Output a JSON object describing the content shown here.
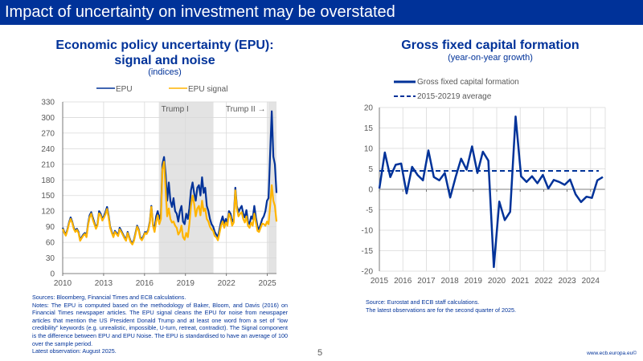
{
  "header": {
    "title": "Impact of uncertainty on investment may be overstated"
  },
  "colors": {
    "brand": "#003299",
    "epu": "#003299",
    "epu_signal": "#FFB400",
    "shade": "#E3E3E3",
    "grid": "#D9D9D9"
  },
  "left": {
    "title_line1": "Economic policy uncertainty (EPU):",
    "title_line2": "signal and noise",
    "subtitle": "(indices)",
    "notes": [
      "Sources: Bloomberg, Financial Times and ECB calculations.",
      "Notes: The EPU is computed based on the methodology of Baker, Bloom, and Davis (2016) on Financial Times newspaper articles. The EPU signal cleans the EPU for noise from newspaper articles that mention the US President Donald Trump and at least one word from a set of “low credibility” keywords (e.g. unrealistic, impossible, U-turn, retreat, contradict). The Signal component is the difference between EPU and EPU Noise. The EPU is standardised to have an average of 100 over the sample period.",
      "Latest observation: August 2025."
    ]
  },
  "right": {
    "title": "Gross fixed capital formation",
    "subtitle": "(year-on-year growth)",
    "notes": [
      "Source: Eurostat and ECB staff calculations.",
      "The latest observations are for the second quarter of 2025."
    ]
  },
  "footer": {
    "page": "5",
    "url": "www.ecb.europa.eu©"
  },
  "chart_data": [
    {
      "type": "line",
      "title": "Economic policy uncertainty (EPU): signal and noise",
      "subtitle": "(indices)",
      "xlabel": "",
      "ylabel": "",
      "xlim": [
        2010,
        2025.67
      ],
      "ylim": [
        0,
        330
      ],
      "yticks": [
        0,
        30,
        60,
        90,
        120,
        150,
        180,
        210,
        240,
        270,
        300,
        330
      ],
      "xticks": [
        2010,
        2013,
        2016,
        2019,
        2022,
        2025
      ],
      "grid": true,
      "legend": "top-center",
      "shaded_periods": [
        {
          "label": "Trump I",
          "start": 2017.05,
          "end": 2021.05
        },
        {
          "label": "Trump II →",
          "start": 2025.05,
          "end": 2025.67
        }
      ],
      "x_step_months": 2,
      "x_start": 2010.0,
      "series": [
        {
          "name": "EPU",
          "values": [
            88,
            80,
            75,
            85,
            98,
            108,
            100,
            88,
            82,
            86,
            80,
            65,
            70,
            75,
            78,
            72,
            95,
            112,
            118,
            108,
            98,
            88,
            95,
            120,
            115,
            105,
            110,
            118,
            128,
            112,
            90,
            80,
            72,
            82,
            78,
            74,
            88,
            82,
            76,
            70,
            65,
            80,
            70,
            62,
            58,
            65,
            78,
            92,
            85,
            70,
            66,
            72,
            80,
            78,
            84,
            100,
            130,
            95,
            85,
            110,
            120,
            105,
            115,
            210,
            224,
            190,
            140,
            175,
            140,
            128,
            145,
            120,
            115,
            100,
            120,
            130,
            100,
            95,
            115,
            105,
            125,
            160,
            175,
            155,
            140,
            165,
            170,
            150,
            185,
            155,
            165,
            130,
            120,
            105,
            95,
            90,
            80,
            75,
            70,
            85,
            100,
            110,
            95,
            105,
            98,
            120,
            115,
            100,
            105,
            165,
            130,
            118,
            125,
            130,
            115,
            108,
            122,
            100,
            95,
            110,
            105,
            130,
            108,
            90,
            85,
            95,
            105,
            110,
            120,
            140,
            145,
            230,
            312,
            225,
            210,
            155
          ]
        },
        {
          "name": "EPU signal",
          "values": [
            86,
            78,
            73,
            83,
            96,
            105,
            98,
            86,
            80,
            84,
            78,
            63,
            68,
            73,
            76,
            70,
            92,
            108,
            115,
            104,
            95,
            86,
            93,
            116,
            112,
            102,
            107,
            114,
            124,
            108,
            88,
            78,
            70,
            80,
            76,
            72,
            85,
            80,
            74,
            68,
            63,
            78,
            68,
            60,
            56,
            63,
            76,
            90,
            83,
            68,
            64,
            70,
            78,
            76,
            82,
            97,
            128,
            92,
            80,
            100,
            112,
            95,
            105,
            200,
            215,
            160,
            110,
            125,
            105,
            98,
            100,
            92,
            88,
            75,
            80,
            92,
            70,
            65,
            78,
            70,
            95,
            130,
            150,
            135,
            110,
            125,
            130,
            112,
            140,
            120,
            125,
            105,
            100,
            90,
            85,
            82,
            72,
            70,
            64,
            78,
            92,
            100,
            88,
            98,
            92,
            115,
            108,
            92,
            98,
            160,
            125,
            110,
            115,
            118,
            105,
            98,
            110,
            92,
            88,
            98,
            92,
            115,
            98,
            82,
            80,
            88,
            96,
            95,
            92,
            100,
            95,
            130,
            170,
            140,
            130,
            100
          ]
        }
      ]
    },
    {
      "type": "line",
      "title": "Gross fixed capital formation",
      "subtitle": "(year-on-year growth)",
      "xlabel": "",
      "ylabel": "",
      "xlim": [
        2015,
        2025.5
      ],
      "ylim": [
        -20,
        20
      ],
      "yticks": [
        -20,
        -15,
        -10,
        -5,
        0,
        5,
        10,
        15,
        20
      ],
      "xticks": [
        2015,
        2016,
        2017,
        2018,
        2019,
        2020,
        2021,
        2022,
        2023,
        2024
      ],
      "grid": true,
      "legend": "top-left",
      "x_start": "2015Q1",
      "frequency": "quarterly",
      "series": [
        {
          "name": "Gross fixed capital formation",
          "style": "solid",
          "values": [
            0.2,
            9,
            3,
            6,
            6.3,
            -1,
            5.5,
            3.5,
            2.2,
            9.5,
            3,
            2.2,
            4,
            -2,
            3,
            7.5,
            4.8,
            10.5,
            4,
            9.2,
            7,
            -19,
            -3,
            -7.5,
            -5.5,
            17.8,
            3.2,
            1.8,
            3.2,
            1.5,
            3.5,
            0.2,
            2.3,
            1.8,
            1.1,
            2.4,
            -1.2,
            -3.1,
            -1.8,
            -2.1,
            2.2,
            3.0
          ]
        },
        {
          "name": "2015-20219 average",
          "style": "dashed",
          "value": 4.5
        }
      ]
    }
  ]
}
